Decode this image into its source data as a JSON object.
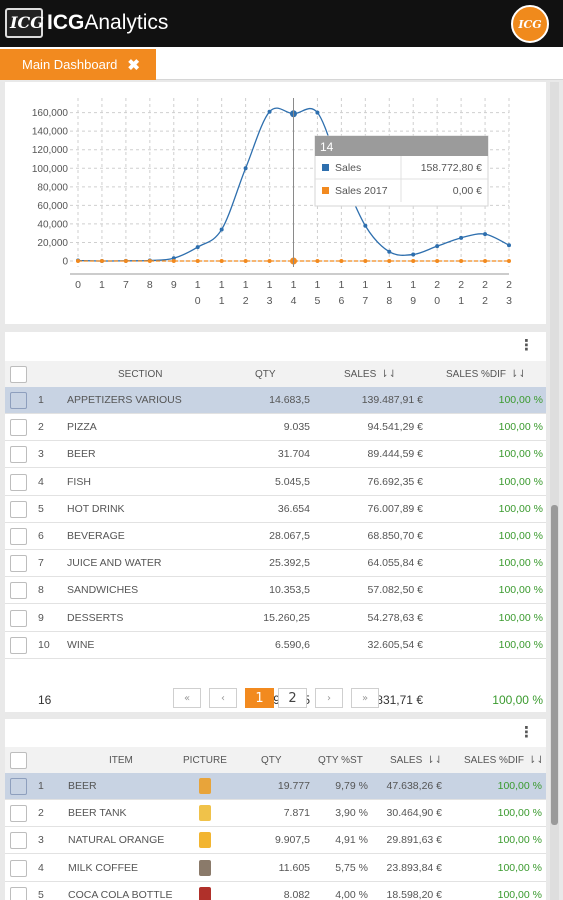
{
  "app": {
    "logo_text": "ICG",
    "title_prefix": "ICG",
    "title_suffix": "Analytics",
    "user_badge": "ICG"
  },
  "tabs": [
    {
      "label": "Main Dashboard",
      "close_icon": "close-icon"
    }
  ],
  "chart_data": {
    "type": "line",
    "categories": [
      "0",
      "1",
      "7",
      "8",
      "9",
      "10",
      "11",
      "12",
      "13",
      "14",
      "15",
      "16",
      "17",
      "18",
      "19",
      "20",
      "21",
      "22",
      "23"
    ],
    "tick_labels": [
      [
        "0"
      ],
      [
        "1"
      ],
      [
        "7"
      ],
      [
        "8"
      ],
      [
        "9"
      ],
      [
        "1",
        "0"
      ],
      [
        "1",
        "1"
      ],
      [
        "1",
        "2"
      ],
      [
        "1",
        "3"
      ],
      [
        "1",
        "4"
      ],
      [
        "1",
        "5"
      ],
      [
        "1",
        "6"
      ],
      [
        "1",
        "7"
      ],
      [
        "1",
        "8"
      ],
      [
        "1",
        "9"
      ],
      [
        "2",
        "0"
      ],
      [
        "2",
        "1"
      ],
      [
        "2",
        "2"
      ],
      [
        "2",
        "3"
      ]
    ],
    "series": [
      {
        "name": "Sales",
        "color": "#2e6fae",
        "values": [
          500,
          0,
          200,
          500,
          3000,
          15000,
          34000,
          100000,
          161000,
          158772.8,
          160000,
          95000,
          38000,
          10000,
          7000,
          16000,
          25000,
          29000,
          17000
        ]
      },
      {
        "name": "Sales 2017",
        "color": "#f28a1f",
        "values": [
          0,
          0,
          0,
          0,
          0,
          0,
          0,
          0,
          0,
          0,
          0,
          0,
          0,
          0,
          0,
          0,
          0,
          0,
          0
        ]
      }
    ],
    "ylim": [
      0,
      165000
    ],
    "y_ticks": [
      "0",
      "20,000",
      "40,000",
      "60,000",
      "80,000",
      "100,000",
      "120,000",
      "140,000",
      "160,000"
    ],
    "y_tick_values": [
      0,
      20000,
      40000,
      60000,
      80000,
      100000,
      120000,
      140000,
      160000
    ],
    "grid": true,
    "tooltip": {
      "title": "14",
      "rows": [
        {
          "label": "Sales",
          "value": "158.772,80 €",
          "color": "#2e6fae"
        },
        {
          "label": "Sales 2017",
          "value": "0,00 €",
          "color": "#f28a1f"
        }
      ]
    }
  },
  "sections_table": {
    "headers": {
      "section": "SECTION",
      "qty": "QTY",
      "sales": "SALES",
      "sales_dif": "SALES %DIF"
    },
    "rows": [
      {
        "n": "1",
        "section": "APPETIZERS VARIOUS",
        "qty": "14.683,5",
        "sales": "139.487,91 €",
        "dif": "100,00 %"
      },
      {
        "n": "2",
        "section": "PIZZA",
        "qty": "9.035",
        "sales": "94.541,29 €",
        "dif": "100,00 %"
      },
      {
        "n": "3",
        "section": "BEER",
        "qty": "31.704",
        "sales": "89.444,59 €",
        "dif": "100,00 %"
      },
      {
        "n": "4",
        "section": "FISH",
        "qty": "5.045,5",
        "sales": "76.692,35 €",
        "dif": "100,00 %"
      },
      {
        "n": "5",
        "section": "HOT DRINK",
        "qty": "36.654",
        "sales": "76.007,89 €",
        "dif": "100,00 %"
      },
      {
        "n": "6",
        "section": "BEVERAGE",
        "qty": "28.067,5",
        "sales": "68.850,70 €",
        "dif": "100,00 %"
      },
      {
        "n": "7",
        "section": "JUICE AND WATER",
        "qty": "25.392,5",
        "sales": "64.055,84 €",
        "dif": "100,00 %"
      },
      {
        "n": "8",
        "section": "SANDWICHES",
        "qty": "10.353,5",
        "sales": "57.082,50 €",
        "dif": "100,00 %"
      },
      {
        "n": "9",
        "section": "DESSERTS",
        "qty": "15.260,25",
        "sales": "54.278,63 €",
        "dif": "100,00 %"
      },
      {
        "n": "10",
        "section": "WINE",
        "qty": "6.590,6",
        "sales": "32.605,54 €",
        "dif": "100,00 %"
      }
    ],
    "totals": {
      "count": "16",
      "qty": "201.978,85",
      "sales": "864.831,71 €",
      "dif": "100,00 %"
    },
    "pagination": {
      "first": "«",
      "prev": "‹",
      "pages": [
        "1",
        "2"
      ],
      "current": "1",
      "next": "›",
      "last": "»"
    }
  },
  "items_table": {
    "headers": {
      "item": "ITEM",
      "picture": "PICTURE",
      "qty": "QTY",
      "qty_st": "QTY %ST",
      "sales": "SALES",
      "sales_dif": "SALES %DIF"
    },
    "rows": [
      {
        "n": "1",
        "item": "BEER",
        "pic_color": "#e8a43a",
        "qty": "19.777",
        "qty_st": "9,79 %",
        "sales": "47.638,26 €",
        "dif": "100,00 %"
      },
      {
        "n": "2",
        "item": "BEER TANK",
        "pic_color": "#f0c24a",
        "qty": "7.871",
        "qty_st": "3,90 %",
        "sales": "30.464,90 €",
        "dif": "100,00 %"
      },
      {
        "n": "3",
        "item": "NATURAL ORANGE",
        "pic_color": "#f2b531",
        "qty": "9.907,5",
        "qty_st": "4,91 %",
        "sales": "29.891,63 €",
        "dif": "100,00 %"
      },
      {
        "n": "4",
        "item": "MILK COFFEE",
        "pic_color": "#8a7a6a",
        "qty": "11.605",
        "qty_st": "5,75 %",
        "sales": "23.893,84 €",
        "dif": "100,00 %"
      },
      {
        "n": "5",
        "item": "COCA COLA BOTTLE",
        "pic_color": "#b0302a",
        "qty": "8.082",
        "qty_st": "4,00 %",
        "sales": "18.598,20 €",
        "dif": "100,00 %"
      }
    ]
  }
}
